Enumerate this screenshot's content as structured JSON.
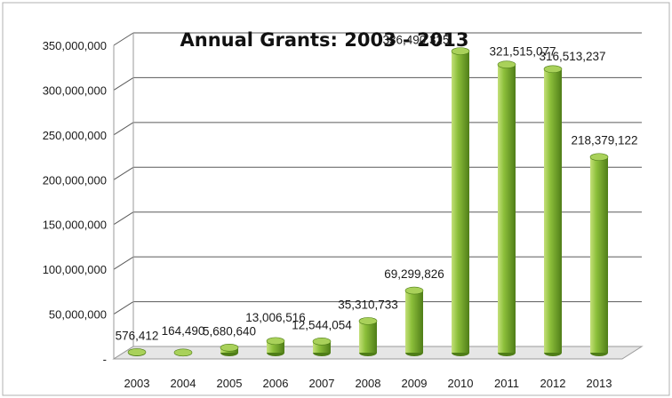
{
  "chart_data": {
    "type": "bar",
    "title": "Annual Grants: 2003 - 2013",
    "xlabel": "",
    "ylabel": "",
    "categories": [
      "2003",
      "2004",
      "2005",
      "2006",
      "2007",
      "2008",
      "2009",
      "2010",
      "2011",
      "2012",
      "2013"
    ],
    "values": [
      576412,
      164490,
      5680640,
      13006516,
      12544054,
      35310733,
      69299826,
      336490325,
      321515077,
      316513237,
      218379122
    ],
    "value_labels": [
      "576,412",
      "164,490",
      "5,680,640",
      "13,006,516",
      "12,544,054",
      "35,310,733",
      "69,299,826",
      "336,490,325",
      "321,515,077",
      "316,513,237",
      "218,379,122"
    ],
    "ylim": [
      0,
      350000000
    ],
    "y_ticks": [
      0,
      50000000,
      100000000,
      150000000,
      200000000,
      250000000,
      300000000,
      350000000
    ],
    "y_tick_labels": [
      "-",
      "50,000,000",
      "100,000,000",
      "150,000,000",
      "200,000,000",
      "250,000,000",
      "300,000,000",
      "350,000,000"
    ],
    "grid": true,
    "legend": "none",
    "style": "3d-cylinder",
    "colors": {
      "bar_light": "#c4e07a",
      "bar_mid": "#8cbf3a",
      "bar_dark": "#4f7d18",
      "bar_top": "#a9d15a",
      "grid": "#5a5a5a",
      "frame": "#9a9a9a"
    }
  }
}
